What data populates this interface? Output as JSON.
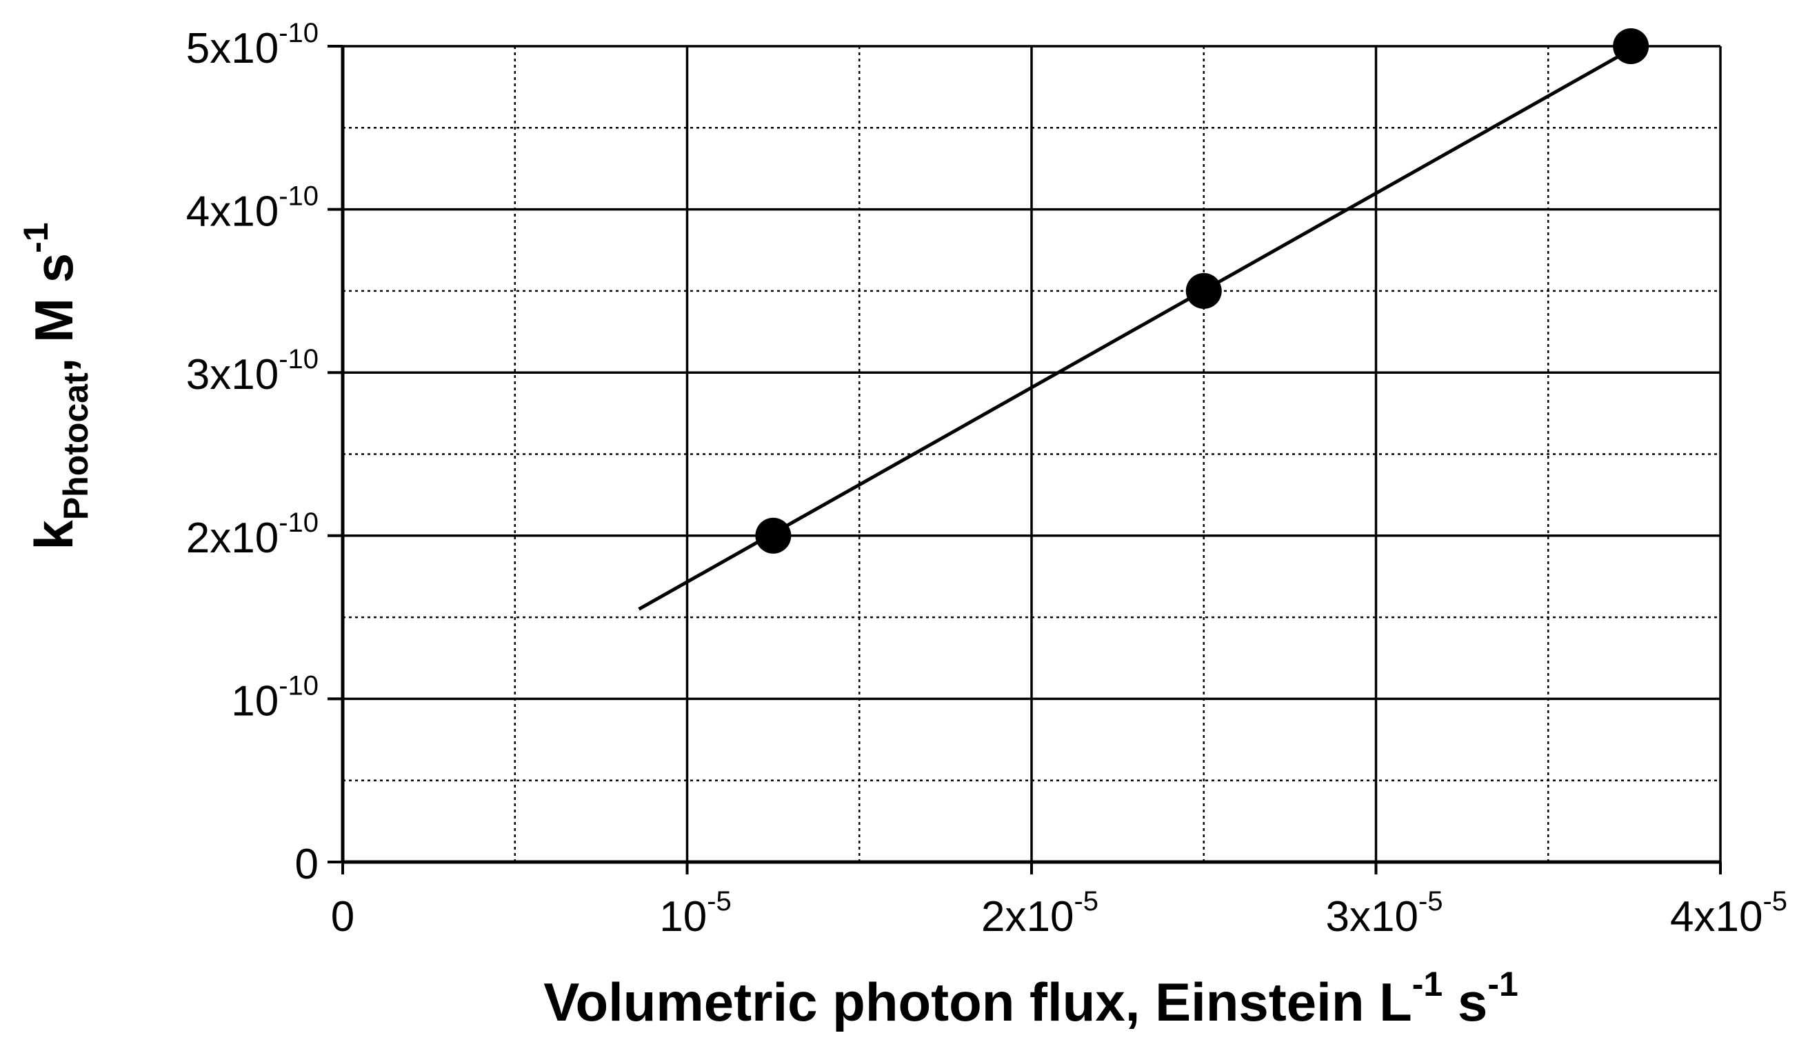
{
  "chart_data": {
    "type": "scatter",
    "title": "",
    "xlabel": {
      "parts": [
        {
          "text": "Volumetric photon flux, Einstein L",
          "style": "normal"
        },
        {
          "text": "-1",
          "style": "sup"
        },
        {
          "text": " s",
          "style": "normal"
        },
        {
          "text": "-1",
          "style": "sup"
        }
      ]
    },
    "ylabel": {
      "parts": [
        {
          "text": "k",
          "style": "normal"
        },
        {
          "text": "Photocat",
          "style": "sub"
        },
        {
          "text": ", M s",
          "style": "normal"
        },
        {
          "text": "-1",
          "style": "sup"
        }
      ]
    },
    "xlim": [
      0,
      4e-05
    ],
    "ylim": [
      0,
      5e-10
    ],
    "x_ticks": [
      {
        "value": 0,
        "base": "0",
        "exp": ""
      },
      {
        "value": 1e-05,
        "base": "10",
        "exp": "-5"
      },
      {
        "value": 2e-05,
        "base": "2x10",
        "exp": "-5"
      },
      {
        "value": 3e-05,
        "base": "3x10",
        "exp": "-5"
      },
      {
        "value": 4e-05,
        "base": "4x10",
        "exp": "-5"
      }
    ],
    "y_ticks": [
      {
        "value": 0,
        "base": "0",
        "exp": ""
      },
      {
        "value": 1e-10,
        "base": "10",
        "exp": "-10"
      },
      {
        "value": 2e-10,
        "base": "2x10",
        "exp": "-10"
      },
      {
        "value": 3e-10,
        "base": "3x10",
        "exp": "-10"
      },
      {
        "value": 4e-10,
        "base": "4x10",
        "exp": "-10"
      },
      {
        "value": 5e-10,
        "base": "5x10",
        "exp": "-10"
      }
    ],
    "x_minor_grid": [
      5e-06,
      1.5e-05,
      2.5e-05,
      3.5e-05
    ],
    "y_minor_grid": [
      5e-11,
      1.5e-10,
      2.5e-10,
      3.5e-10,
      4.5e-10
    ],
    "grid": {
      "major": "solid",
      "minor": "dotted"
    },
    "legend": "none",
    "series": [
      {
        "points": [
          {
            "x": 1.25e-05,
            "y": 2e-10
          },
          {
            "x": 2.5e-05,
            "y": 3.5e-10
          },
          {
            "x": 3.74e-05,
            "y": 5e-10
          }
        ],
        "marker": "filled-circle",
        "color": "#000000"
      }
    ],
    "fit_line": {
      "x_start": 8.6e-06,
      "y_start": 1.55e-10,
      "x_end": 3.74e-05,
      "y_end": 4.98e-10,
      "color": "#000000"
    }
  }
}
